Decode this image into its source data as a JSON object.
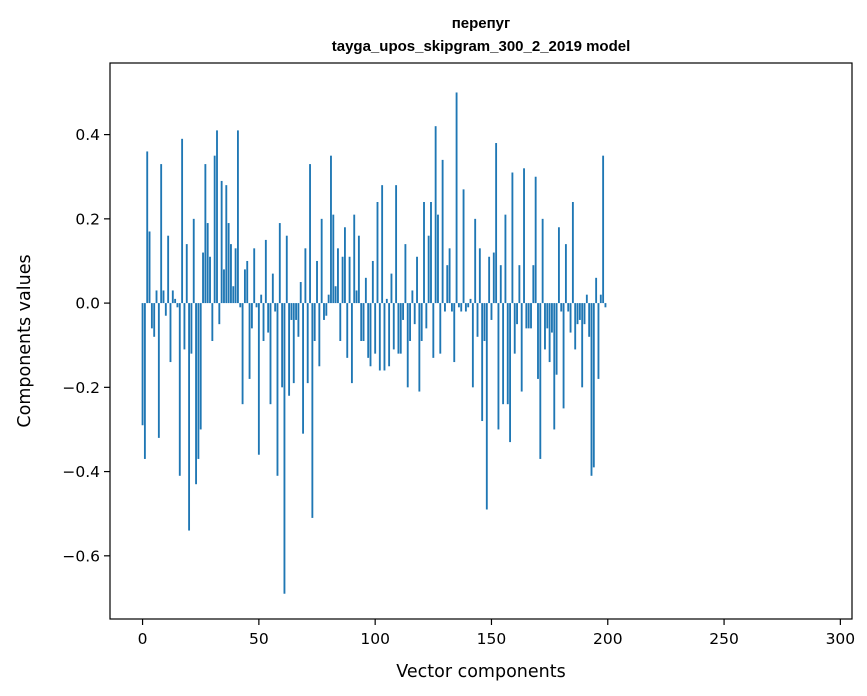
{
  "chart_data": {
    "type": "bar",
    "title": "перепуг",
    "subtitle": "tayga_upos_skipgram_300_2_2019 model",
    "xlabel": "Vector components",
    "ylabel": "Components values",
    "xlim": [
      -14,
      305
    ],
    "ylim": [
      -0.75,
      0.57
    ],
    "xticks": [
      0,
      50,
      100,
      150,
      200,
      250,
      300
    ],
    "xtick_labels": [
      "0",
      "50",
      "100",
      "150",
      "200",
      "250",
      "300"
    ],
    "yticks": [
      -0.6,
      -0.4,
      -0.2,
      0.0,
      0.2,
      0.4
    ],
    "ytick_labels": [
      "−0.6",
      "−0.4",
      "−0.2",
      "0.0",
      "0.2",
      "0.4"
    ],
    "bar_color": "#1f77b4",
    "grid": false,
    "values": [
      -0.29,
      -0.37,
      0.36,
      0.17,
      -0.06,
      -0.08,
      0.03,
      -0.32,
      0.33,
      0.03,
      -0.03,
      0.16,
      -0.14,
      0.03,
      0.01,
      -0.01,
      -0.41,
      0.39,
      -0.11,
      0.14,
      -0.54,
      -0.12,
      0.2,
      -0.43,
      -0.37,
      -0.3,
      0.12,
      0.33,
      0.19,
      0.11,
      -0.09,
      0.35,
      0.41,
      -0.05,
      0.29,
      0.08,
      0.28,
      0.19,
      0.14,
      0.04,
      0.13,
      0.41,
      -0.01,
      -0.24,
      0.08,
      0.1,
      -0.18,
      -0.06,
      0.13,
      -0.01,
      -0.36,
      0.02,
      -0.09,
      0.15,
      -0.07,
      -0.24,
      0.07,
      -0.02,
      -0.41,
      0.19,
      -0.2,
      -0.69,
      0.16,
      -0.22,
      -0.04,
      -0.19,
      -0.04,
      -0.08,
      0.05,
      -0.31,
      0.13,
      -0.19,
      0.33,
      -0.51,
      -0.09,
      0.1,
      -0.15,
      0.2,
      -0.04,
      -0.03,
      0.02,
      0.35,
      0.21,
      0.04,
      0.13,
      -0.09,
      0.11,
      0.18,
      -0.13,
      0.11,
      -0.19,
      0.21,
      0.03,
      0.16,
      -0.09,
      -0.09,
      0.06,
      -0.13,
      -0.15,
      0.1,
      -0.12,
      0.24,
      -0.16,
      0.28,
      -0.16,
      0.01,
      -0.15,
      0.07,
      -0.11,
      0.28,
      -0.12,
      -0.12,
      -0.04,
      0.14,
      -0.2,
      -0.09,
      0.03,
      -0.05,
      0.11,
      -0.21,
      -0.09,
      0.24,
      -0.06,
      0.16,
      0.24,
      -0.13,
      0.42,
      0.21,
      -0.12,
      0.34,
      -0.02,
      0.09,
      0.13,
      -0.02,
      -0.14,
      0.5,
      -0.01,
      -0.02,
      0.27,
      -0.02,
      -0.01,
      0.01,
      -0.2,
      0.2,
      -0.08,
      0.13,
      -0.28,
      -0.09,
      -0.49,
      0.11,
      -0.04,
      0.12,
      0.38,
      -0.3,
      0.09,
      -0.24,
      0.21,
      -0.24,
      -0.33,
      0.31,
      -0.12,
      -0.05,
      0.09,
      -0.21,
      0.32,
      -0.06,
      -0.06,
      -0.06,
      0.09,
      0.3,
      -0.18,
      -0.37,
      0.2,
      -0.11,
      -0.06,
      -0.14,
      -0.07,
      -0.3,
      -0.17,
      0.18,
      -0.02,
      -0.25,
      0.14,
      -0.02,
      -0.07,
      0.24,
      -0.11,
      -0.05,
      -0.04,
      -0.2,
      -0.05,
      0.02,
      -0.08,
      -0.41,
      -0.39,
      0.06,
      -0.18,
      0.02,
      0.35,
      -0.01
    ]
  }
}
